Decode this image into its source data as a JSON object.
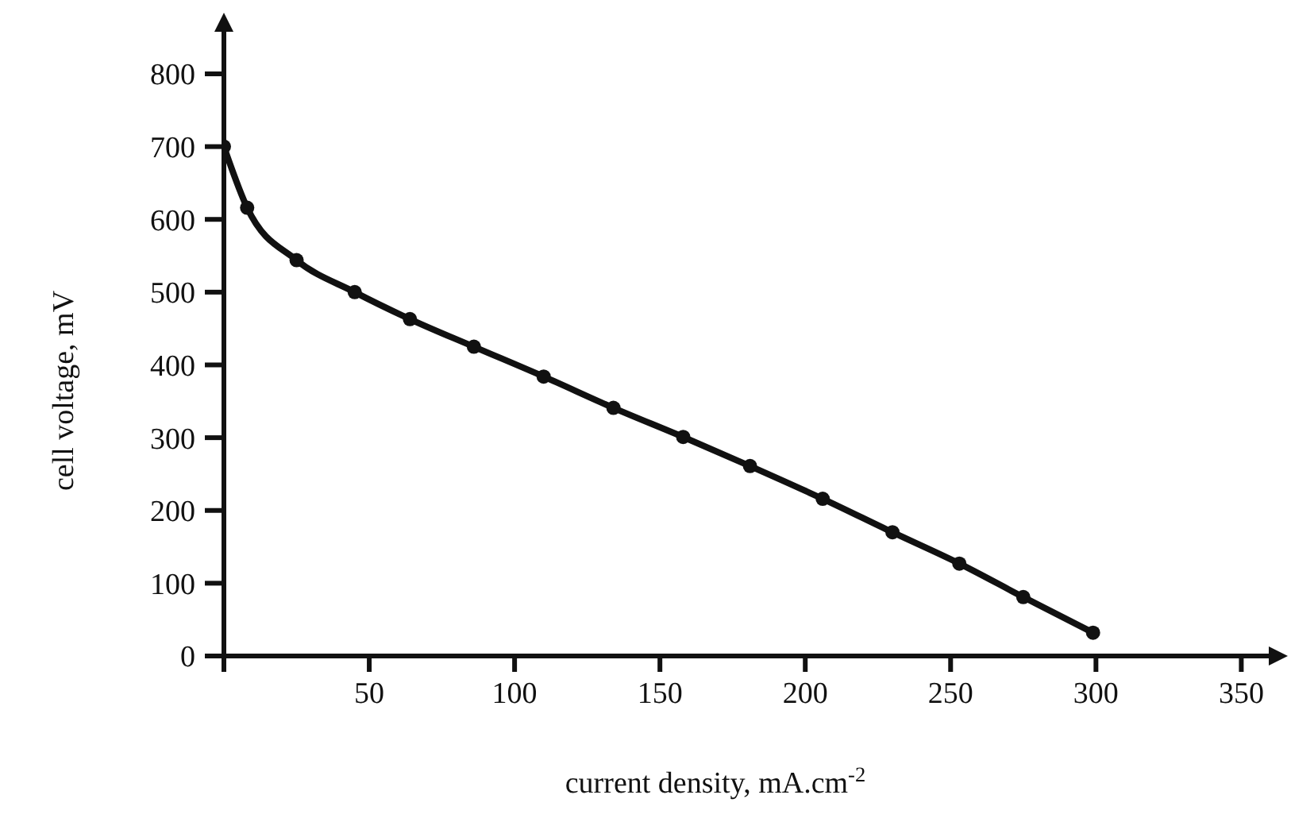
{
  "chart_data": {
    "type": "line",
    "xlabel": "current density, mA.cm$^{-2}$",
    "ylabel": "cell voltage, mV",
    "x": [
      0,
      8,
      25,
      45,
      64,
      86,
      110,
      134,
      158,
      181,
      206,
      230,
      253,
      275,
      299
    ],
    "series": [
      {
        "color": "#111111",
        "values": [
          700,
          616,
          544,
          500,
          463,
          425,
          384,
          341,
          301,
          261,
          216,
          170,
          127,
          81,
          32
        ]
      }
    ],
    "xlim": [
      0,
      360
    ],
    "ylim": [
      0,
      860
    ],
    "xticks": [
      {
        "value": 0,
        "label": null
      },
      50,
      100,
      150,
      200,
      250,
      300,
      350
    ],
    "yticks": [
      0,
      100,
      200,
      300,
      400,
      500,
      600,
      700,
      800
    ],
    "marker": "circle",
    "line_style": "solid",
    "grid": false,
    "legend": false
  }
}
